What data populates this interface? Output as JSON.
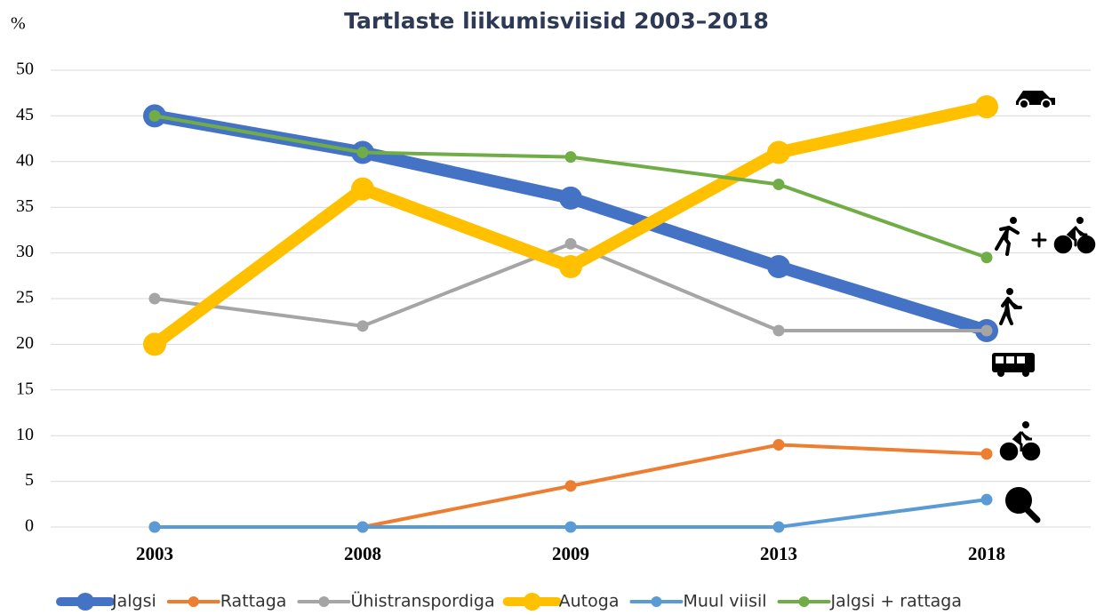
{
  "chart_data": {
    "type": "line",
    "title": "Tartlaste liikumisviisid 2003–2018",
    "y_label": "%",
    "categories": [
      "2003",
      "2008",
      "2009",
      "2013",
      "2018"
    ],
    "series": [
      {
        "name": "Jalgsi",
        "color": "#4472c4",
        "values": [
          45,
          41,
          36,
          28.5,
          21.5
        ]
      },
      {
        "name": "Rattaga",
        "color": "#ed7d31",
        "values": [
          0,
          0,
          4.5,
          9,
          8
        ]
      },
      {
        "name": "Ühistranspordiga",
        "color": "#a5a5a5",
        "values": [
          25,
          22,
          31,
          21.5,
          21.5
        ]
      },
      {
        "name": "Autoga",
        "color": "#ffc000",
        "values": [
          20,
          37,
          28.5,
          41,
          46
        ]
      },
      {
        "name": "Muul viisil",
        "color": "#5b9bd5",
        "values": [
          0,
          0,
          0,
          0,
          3
        ]
      },
      {
        "name": "Jalgsi + rattaga",
        "color": "#70ad47",
        "values": [
          45,
          41,
          40.5,
          37.5,
          29.5
        ]
      }
    ],
    "ylim": [
      0,
      50
    ],
    "yticks": [
      0,
      5,
      10,
      15,
      20,
      25,
      30,
      35,
      40,
      45,
      50
    ],
    "grid": true
  }
}
